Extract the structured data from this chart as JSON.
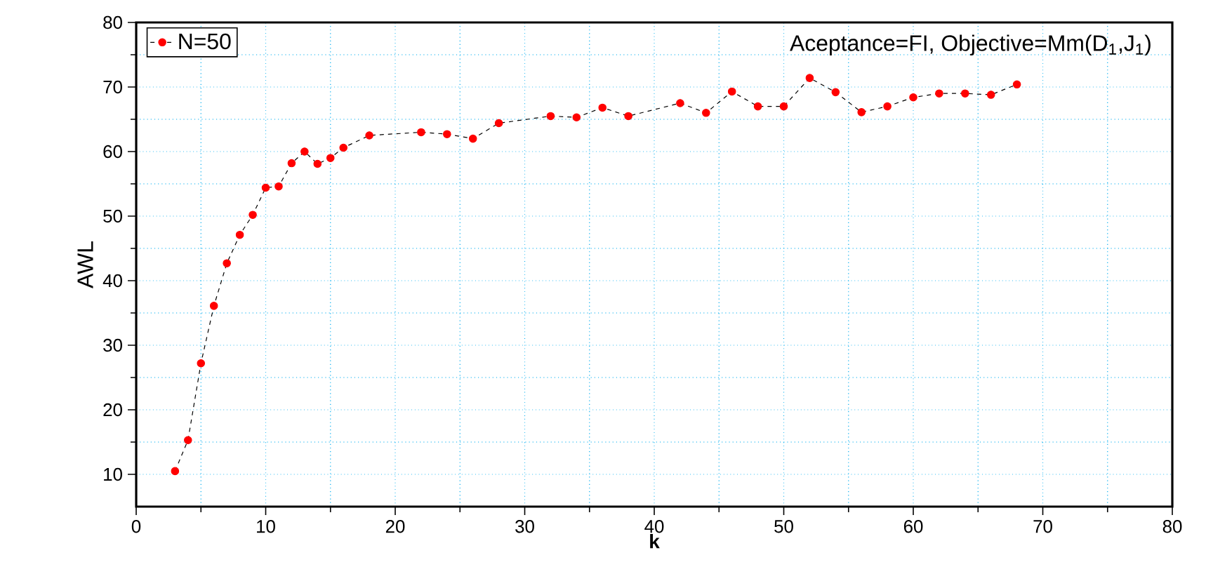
{
  "chart_data": {
    "type": "line",
    "title": "Aceptance=FI, Objective=Mm(D$_{1}$,J$_{1}$)",
    "xlabel": "k",
    "ylabel": "AWL",
    "x": [
      3,
      4,
      5,
      6,
      7,
      8,
      9,
      10,
      11,
      12,
      13,
      14,
      15,
      16,
      18,
      22,
      24,
      26,
      28,
      32,
      34,
      36,
      38,
      42,
      44,
      46,
      48,
      50,
      52,
      54,
      56,
      58,
      60,
      62,
      64,
      66,
      68
    ],
    "series": [
      {
        "name": "N=50",
        "color": "#ff0000",
        "values": [
          10.5,
          15.3,
          27.2,
          36.1,
          42.7,
          47.1,
          50.2,
          54.4,
          54.6,
          58.2,
          60.0,
          58.1,
          59.0,
          60.6,
          62.5,
          63.0,
          62.7,
          62.0,
          64.4,
          65.5,
          65.3,
          66.8,
          65.5,
          67.5,
          66.0,
          69.3,
          67.0,
          67.0,
          71.4,
          69.2,
          66.1,
          67.0,
          68.4,
          69.0,
          69.0,
          68.8,
          70.4
        ]
      }
    ],
    "xlim": [
      0,
      80
    ],
    "ylim": [
      5,
      80
    ],
    "xticks": [
      0,
      10,
      20,
      30,
      40,
      50,
      60,
      70,
      80
    ],
    "yticks": [
      10,
      20,
      30,
      40,
      50,
      60,
      70,
      80
    ],
    "grid": true,
    "legend": "top left",
    "marker": "circle",
    "line_style": "dashed"
  }
}
